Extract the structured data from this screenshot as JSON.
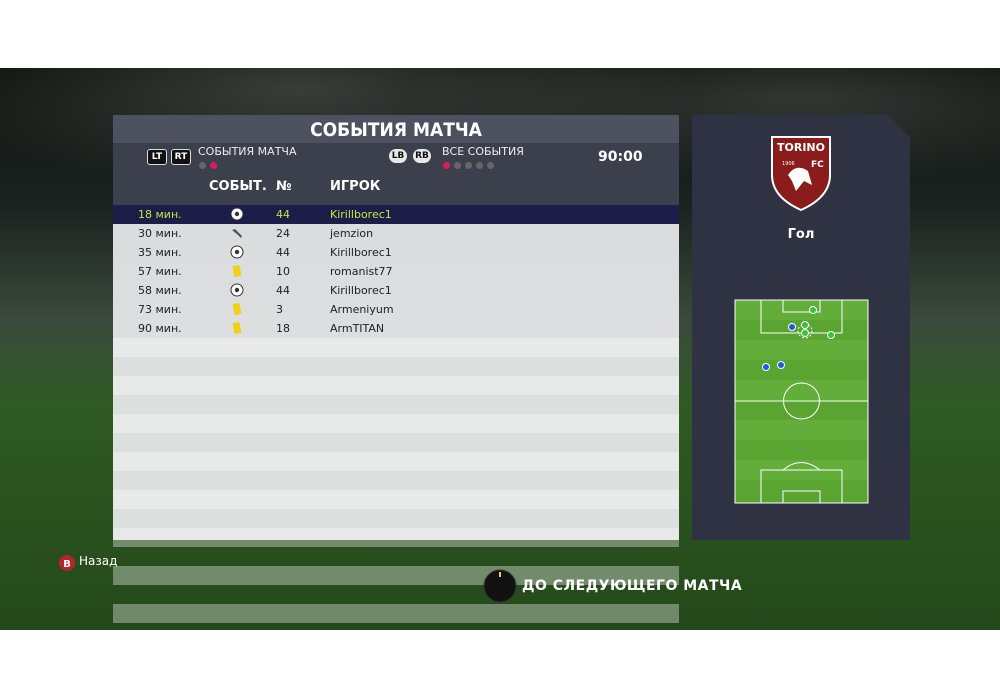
{
  "screen": {
    "title": "СОБЫТИЯ МАТЧА",
    "left_buttons": [
      "LT",
      "RT"
    ],
    "left_tab": "СОБЫТИЯ МАТЧА",
    "right_buttons": [
      "LB",
      "RB"
    ],
    "right_tab": "ВСЕ СОБЫТИЯ",
    "time": "90:00",
    "columns": [
      "СОБЫТ.",
      "№",
      "ИГРОК"
    ],
    "rows": [
      {
        "minute": "18 мин.",
        "icon": "ball",
        "number": "44",
        "player": "Kirillborec1"
      },
      {
        "minute": "30 мин.",
        "icon": "boot",
        "number": "24",
        "player": "jemzion"
      },
      {
        "minute": "35 мин.",
        "icon": "ball",
        "number": "44",
        "player": "Kirillborec1"
      },
      {
        "minute": "57 мин.",
        "icon": "yellow-card",
        "number": "10",
        "player": "romanist77"
      },
      {
        "minute": "58 мин.",
        "icon": "ball",
        "number": "44",
        "player": "Kirillborec1"
      },
      {
        "minute": "73 мин.",
        "icon": "yellow-card",
        "number": "3",
        "player": "Armeniyum"
      },
      {
        "minute": "90 мин.",
        "icon": "yellow-card",
        "number": "18",
        "player": "ArmTITAN"
      }
    ],
    "crest": {
      "name": "TORINO",
      "year": "1906",
      "suffix": "FC"
    },
    "event_label": "Гол",
    "back_button": "B",
    "back_label": "Назад",
    "next_label": "ДО СЛЕДУЮЩЕГО МАТЧА"
  }
}
